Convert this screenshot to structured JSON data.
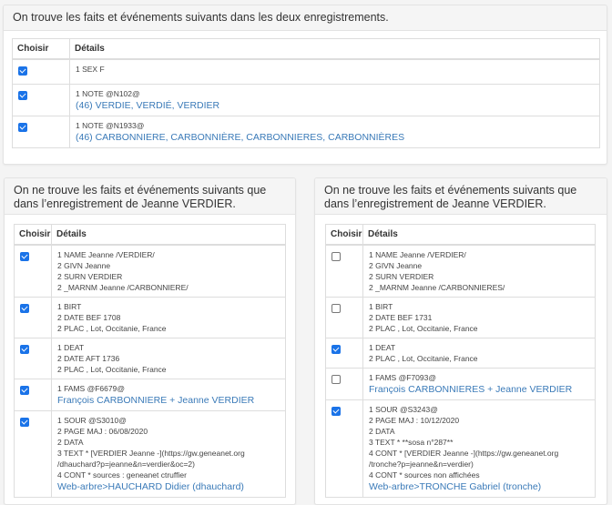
{
  "headers": {
    "choose": "Choisir",
    "details": "Détails"
  },
  "accent": "#1a73e8",
  "link_color": "#3a7ab8",
  "common": {
    "title": "On trouve les faits et événements suivants dans les deux enregistrements.",
    "rows": [
      {
        "checked": true,
        "lines": [
          "1 SEX F"
        ]
      },
      {
        "checked": true,
        "lines": [
          "1 NOTE @N102@"
        ],
        "link": "(46) VERDIE, VERDIÉ, VERDIER"
      },
      {
        "checked": true,
        "lines": [
          "1 NOTE @N1933@"
        ],
        "link": "(46) CARBONNIERE, CARBONNIÈRE, CARBONNIERES, CARBONNIÈRES"
      }
    ]
  },
  "left": {
    "title": "On ne trouve les faits et événements suivants que dans l’enregistrement de Jeanne VERDIER.",
    "rows": [
      {
        "checked": true,
        "lines": [
          "1 NAME Jeanne /VERDIER/",
          "2 GIVN Jeanne",
          "2 SURN VERDIER",
          "2 _MARNM Jeanne /CARBONNIERE/"
        ]
      },
      {
        "checked": true,
        "lines": [
          "1 BIRT",
          "2 DATE BEF 1708",
          "2 PLAC , Lot, Occitanie, France"
        ]
      },
      {
        "checked": true,
        "lines": [
          "1 DEAT",
          "2 DATE AFT 1736",
          "2 PLAC , Lot, Occitanie, France"
        ]
      },
      {
        "checked": true,
        "lines": [
          "1 FAMS @F6679@"
        ],
        "link": "François CARBONNIERE + Jeanne VERDIER"
      },
      {
        "checked": true,
        "lines": [
          "1 SOUR @S3010@",
          "2 PAGE MAJ : 06/08/2020",
          "2 DATA",
          "3 TEXT * [VERDIER Jeanne -](https://gw.geneanet.org",
          "/dhauchard?p=jeanne&n=verdier&oc=2)",
          "4 CONT * sources : geneanet ctruffier"
        ],
        "link": "Web-arbre>HAUCHARD Didier (dhauchard)"
      }
    ]
  },
  "right": {
    "title": "On ne trouve les faits et événements suivants que dans l’enregistrement de Jeanne VERDIER.",
    "rows": [
      {
        "checked": false,
        "lines": [
          "1 NAME Jeanne /VERDIER/",
          "2 GIVN Jeanne",
          "2 SURN VERDIER",
          "2 _MARNM Jeanne /CARBONNIERES/"
        ]
      },
      {
        "checked": false,
        "lines": [
          "1 BIRT",
          "2 DATE BEF 1731",
          "2 PLAC , Lot, Occitanie, France"
        ]
      },
      {
        "checked": true,
        "lines": [
          "1 DEAT",
          "2 PLAC , Lot, Occitanie, France"
        ]
      },
      {
        "checked": false,
        "lines": [
          "1 FAMS @F7093@"
        ],
        "link": "François CARBONNIERES + Jeanne VERDIER"
      },
      {
        "checked": true,
        "lines": [
          "1 SOUR @S3243@",
          "2 PAGE MAJ : 10/12/2020",
          "2 DATA",
          "3 TEXT * **sosa n°287**",
          "4 CONT * [VERDIER Jeanne -](https://gw.geneanet.org",
          "/tronche?p=jeanne&n=verdier)",
          "4 CONT * sources non affichées"
        ],
        "link": "Web-arbre>TRONCHE Gabriel (tronche)"
      }
    ]
  }
}
